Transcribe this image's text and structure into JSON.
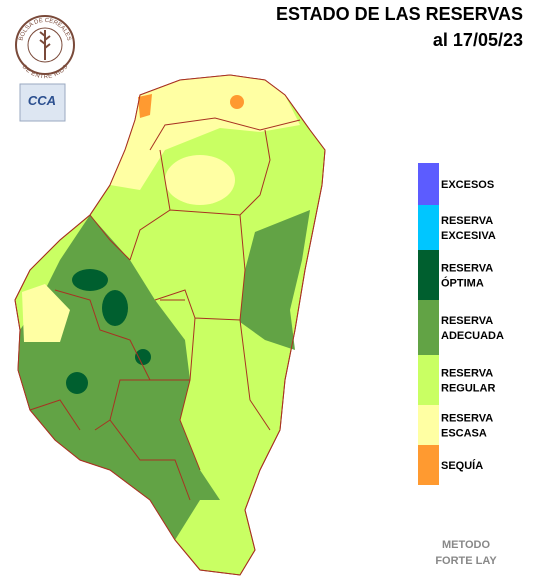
{
  "header": {
    "title": "ESTADO DE LAS RESERVAS",
    "date": "al 17/05/23"
  },
  "logos": {
    "bolsa_top": "BOLSA DE CEREALES",
    "bolsa_bottom": "DE ENTRE RIOS",
    "cca": "CCA"
  },
  "legend": [
    {
      "label": [
        "EXCESOS"
      ],
      "color": "#5c5cff"
    },
    {
      "label": [
        "RESERVA",
        "EXCESIVA"
      ],
      "color": "#00c6ff"
    },
    {
      "label": [
        "RESERVA",
        "ÓPTIMA"
      ],
      "color": "#005f2f"
    },
    {
      "label": [
        "RESERVA",
        "ADECUADA"
      ],
      "color": "#62a345"
    },
    {
      "label": [
        "RESERVA",
        "REGULAR"
      ],
      "color": "#c9ff63"
    },
    {
      "label": [
        "RESERVA",
        "ESCASA"
      ],
      "color": "#ffffa3"
    },
    {
      "label": [
        "SEQUÍA"
      ],
      "color": "#ff9a30"
    }
  ],
  "footer": {
    "method": [
      "METODO",
      "FORTE LAY"
    ]
  }
}
